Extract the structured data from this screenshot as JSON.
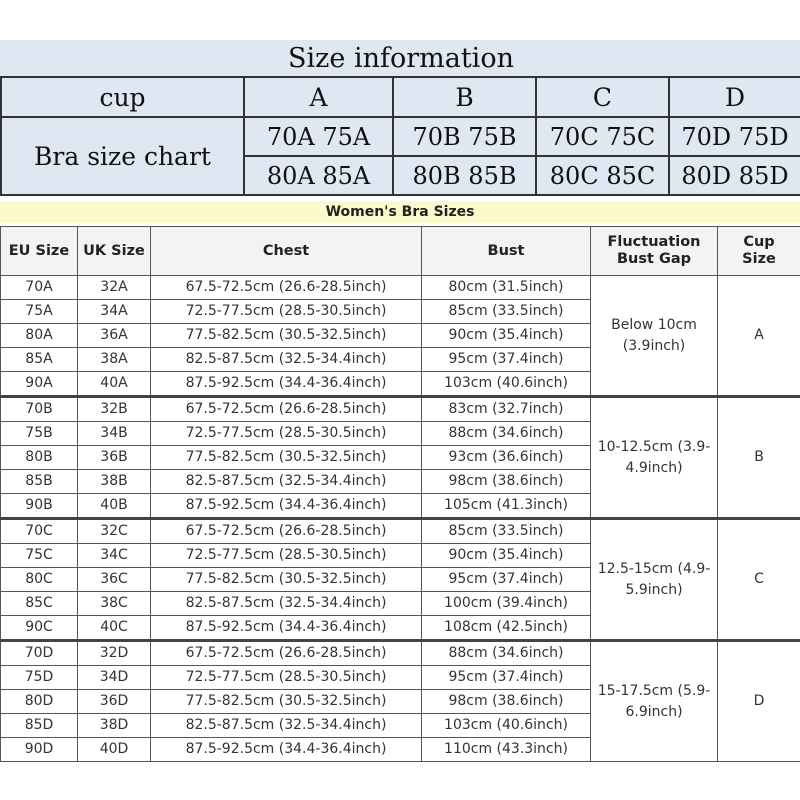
{
  "top": {
    "title": "Size information",
    "cup_label": "cup",
    "cups": [
      "A",
      "B",
      "C",
      "D"
    ],
    "row_label": "Bra size chart",
    "size_rows": [
      [
        "70A 75A",
        "70B 75B",
        "70C 75C",
        "70D 75D"
      ],
      [
        "80A 85A",
        "80B 85B",
        "80C 85C",
        "80D 85D"
      ]
    ],
    "background_color": "#dfe7f3"
  },
  "bottom": {
    "title": "Women's Bra Sizes",
    "title_band_color": "#fafacd",
    "headers": [
      "EU Size",
      "UK Size",
      "Chest",
      "Bust",
      "Fluctuation Bust Gap",
      "Cup Size"
    ],
    "groups": [
      {
        "gap": "Below 10cm (3.9inch)",
        "cup": "A",
        "rows": [
          [
            "70A",
            "32A",
            "67.5-72.5cm (26.6-28.5inch)",
            "80cm (31.5inch)"
          ],
          [
            "75A",
            "34A",
            "72.5-77.5cm (28.5-30.5inch)",
            "85cm (33.5inch)"
          ],
          [
            "80A",
            "36A",
            "77.5-82.5cm (30.5-32.5inch)",
            "90cm (35.4inch)"
          ],
          [
            "85A",
            "38A",
            "82.5-87.5cm (32.5-34.4inch)",
            "95cm (37.4inch)"
          ],
          [
            "90A",
            "40A",
            "87.5-92.5cm (34.4-36.4inch)",
            "103cm (40.6inch)"
          ]
        ]
      },
      {
        "gap": "10-12.5cm (3.9-4.9inch)",
        "cup": "B",
        "rows": [
          [
            "70B",
            "32B",
            "67.5-72.5cm (26.6-28.5inch)",
            "83cm (32.7inch)"
          ],
          [
            "75B",
            "34B",
            "72.5-77.5cm (28.5-30.5inch)",
            "88cm (34.6inch)"
          ],
          [
            "80B",
            "36B",
            "77.5-82.5cm (30.5-32.5inch)",
            "93cm (36.6inch)"
          ],
          [
            "85B",
            "38B",
            "82.5-87.5cm (32.5-34.4inch)",
            "98cm (38.6inch)"
          ],
          [
            "90B",
            "40B",
            "87.5-92.5cm (34.4-36.4inch)",
            "105cm (41.3inch)"
          ]
        ]
      },
      {
        "gap": "12.5-15cm (4.9-5.9inch)",
        "cup": "C",
        "rows": [
          [
            "70C",
            "32C",
            "67.5-72.5cm (26.6-28.5inch)",
            "85cm (33.5inch)"
          ],
          [
            "75C",
            "34C",
            "72.5-77.5cm (28.5-30.5inch)",
            "90cm (35.4inch)"
          ],
          [
            "80C",
            "36C",
            "77.5-82.5cm (30.5-32.5inch)",
            "95cm (37.4inch)"
          ],
          [
            "85C",
            "38C",
            "82.5-87.5cm (32.5-34.4inch)",
            "100cm (39.4inch)"
          ],
          [
            "90C",
            "40C",
            "87.5-92.5cm (34.4-36.4inch)",
            "108cm (42.5inch)"
          ]
        ]
      },
      {
        "gap": "15-17.5cm (5.9-6.9inch)",
        "cup": "D",
        "rows": [
          [
            "70D",
            "32D",
            "67.5-72.5cm (26.6-28.5inch)",
            "88cm (34.6inch)"
          ],
          [
            "75D",
            "34D",
            "72.5-77.5cm (28.5-30.5inch)",
            "95cm (37.4inch)"
          ],
          [
            "80D",
            "36D",
            "77.5-82.5cm (30.5-32.5inch)",
            "98cm (38.6inch)"
          ],
          [
            "85D",
            "38D",
            "82.5-87.5cm (32.5-34.4inch)",
            "103cm (40.6inch)"
          ],
          [
            "90D",
            "40D",
            "87.5-92.5cm (34.4-36.4inch)",
            "110cm (43.3inch)"
          ]
        ]
      }
    ]
  }
}
